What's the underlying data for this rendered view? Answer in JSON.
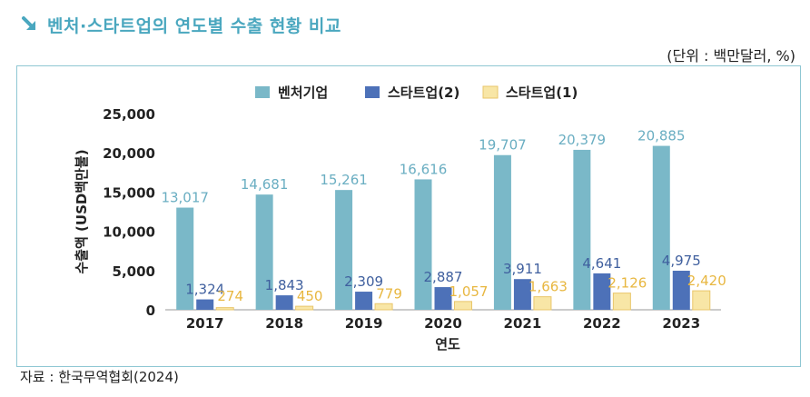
{
  "header": {
    "title": "벤처·스타트업의 연도별 수출 현황 비교",
    "unit_note": "(단위 : 백만달러, %)"
  },
  "footer": {
    "source": "자료 : 한국무역협회(2024)"
  },
  "colors": {
    "accent": "#4aa7bf",
    "venture": "#7ab8c8",
    "startup2": "#4d71b8",
    "startup1": "#f8e6a6",
    "startup1_border": "#e9c66a",
    "venture_label": "#6aaec2",
    "startup2_label": "#3f5f9e",
    "startup1_label": "#e8b740"
  },
  "chart_data": {
    "type": "bar",
    "title": "",
    "xlabel": "연도",
    "ylabel": "수출액 (USD백만불)",
    "ylim": [
      0,
      25000
    ],
    "yticks": [
      0,
      5000,
      10000,
      15000,
      20000,
      25000
    ],
    "ytick_labels": [
      "0",
      "5,000",
      "10,000",
      "15,000",
      "20,000",
      "25,000"
    ],
    "categories": [
      "2017",
      "2018",
      "2019",
      "2020",
      "2021",
      "2022",
      "2023"
    ],
    "legend_position": "top-center",
    "series": [
      {
        "name": "벤처기업",
        "color_key": "venture",
        "values": [
          13017,
          14681,
          15261,
          16616,
          19707,
          20379,
          20885
        ],
        "labels": [
          "13,017",
          "14,681",
          "15,261",
          "16,616",
          "19,707",
          "20,379",
          "20,885"
        ]
      },
      {
        "name": "스타트업(2)",
        "color_key": "startup2",
        "values": [
          1324,
          1843,
          2309,
          2887,
          3911,
          4641,
          4975
        ],
        "labels": [
          "1,324",
          "1,843",
          "2,309",
          "2,887",
          "3,911",
          "4,641",
          "4,975"
        ]
      },
      {
        "name": "스타트업(1)",
        "color_key": "startup1",
        "values": [
          274,
          450,
          779,
          1057,
          1663,
          2126,
          2420
        ],
        "labels": [
          "274",
          "450",
          "779",
          "1,057",
          "1,663",
          "2,126",
          "2,420"
        ]
      }
    ]
  }
}
